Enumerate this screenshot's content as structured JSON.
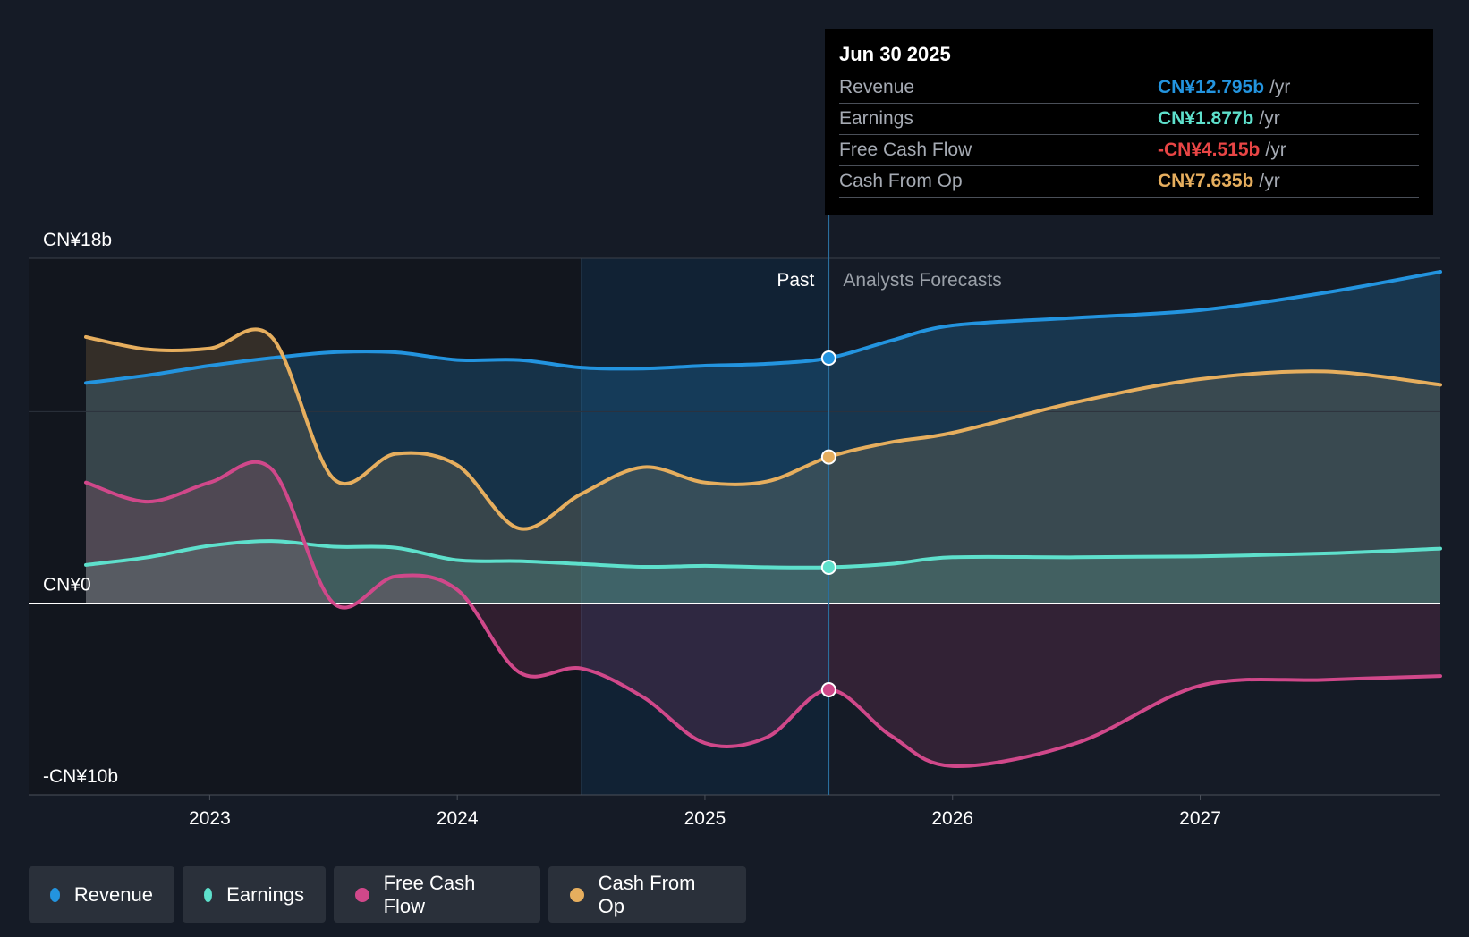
{
  "chart_data": {
    "type": "area",
    "y_unit": "CN¥ billions",
    "ylim": [
      -10,
      18
    ],
    "y_tick_labels": [
      {
        "value": 18,
        "label": "CN¥18b"
      },
      {
        "value": 0,
        "label": "CN¥0"
      },
      {
        "value": -10,
        "label": "-CN¥10b"
      }
    ],
    "x_range": [
      2022.5,
      2027.97
    ],
    "x_ticks": [
      {
        "value": 2023,
        "label": "2023"
      },
      {
        "value": 2024,
        "label": "2024"
      },
      {
        "value": 2025,
        "label": "2025"
      },
      {
        "value": 2026,
        "label": "2026"
      },
      {
        "value": 2027,
        "label": "2027"
      }
    ],
    "past_label": "Past",
    "forecast_label": "Analysts Forecasts",
    "divider_x": 2025.5,
    "highlight_start_x": 2024.5,
    "series": [
      {
        "name": "Revenue",
        "color": "#2394df",
        "x": [
          2022.5,
          2022.75,
          2023.0,
          2023.25,
          2023.5,
          2023.75,
          2024.0,
          2024.25,
          2024.5,
          2024.75,
          2025.0,
          2025.25,
          2025.5,
          2025.75,
          2026.0,
          2026.5,
          2027.0,
          2027.5,
          2027.97
        ],
        "y": [
          11.5,
          11.9,
          12.4,
          12.8,
          13.1,
          13.1,
          12.7,
          12.7,
          12.3,
          12.25,
          12.4,
          12.5,
          12.795,
          13.7,
          14.5,
          14.9,
          15.3,
          16.2,
          17.3
        ]
      },
      {
        "name": "Earnings",
        "color": "#5ee0cc",
        "x": [
          2022.5,
          2022.75,
          2023.0,
          2023.25,
          2023.5,
          2023.75,
          2024.0,
          2024.25,
          2024.5,
          2024.75,
          2025.0,
          2025.25,
          2025.5,
          2025.75,
          2026.0,
          2026.5,
          2027.0,
          2027.5,
          2027.97
        ],
        "y": [
          2.0,
          2.4,
          3.0,
          3.25,
          2.95,
          2.9,
          2.25,
          2.2,
          2.05,
          1.9,
          1.95,
          1.88,
          1.877,
          2.05,
          2.4,
          2.4,
          2.45,
          2.6,
          2.85
        ]
      },
      {
        "name": "Free Cash Flow",
        "color": "#d0488a",
        "x": [
          2022.5,
          2022.75,
          2023.0,
          2023.25,
          2023.5,
          2023.75,
          2024.0,
          2024.25,
          2024.5,
          2024.75,
          2025.0,
          2025.25,
          2025.5,
          2025.75,
          2026.0,
          2026.5,
          2027.0,
          2027.5,
          2027.97
        ],
        "y": [
          6.3,
          5.3,
          6.3,
          7.0,
          0.0,
          1.4,
          0.7,
          -3.6,
          -3.4,
          -4.9,
          -7.3,
          -7.0,
          -4.515,
          -6.9,
          -8.5,
          -7.3,
          -4.3,
          -4.0,
          -3.8
        ]
      },
      {
        "name": "Cash From Op",
        "color": "#e6ae5e",
        "x": [
          2022.5,
          2022.75,
          2023.0,
          2023.25,
          2023.5,
          2023.75,
          2024.0,
          2024.25,
          2024.5,
          2024.75,
          2025.0,
          2025.25,
          2025.5,
          2025.75,
          2026.0,
          2026.5,
          2027.0,
          2027.5,
          2027.97
        ],
        "y": [
          13.9,
          13.25,
          13.3,
          13.9,
          6.5,
          7.8,
          7.2,
          3.9,
          5.7,
          7.1,
          6.3,
          6.35,
          7.635,
          8.4,
          8.9,
          10.5,
          11.7,
          12.1,
          11.4
        ]
      }
    ],
    "tooltip": {
      "date": "Jun 30 2025",
      "rows": [
        {
          "label": "Revenue",
          "value": "CN¥12.795b",
          "unit": "/yr",
          "color": "#2394df"
        },
        {
          "label": "Earnings",
          "value": "CN¥1.877b",
          "unit": "/yr",
          "color": "#5ee0cc"
        },
        {
          "label": "Free Cash Flow",
          "value": "-CN¥4.515b",
          "unit": "/yr",
          "color": "#e84545"
        },
        {
          "label": "Cash From Op",
          "value": "CN¥7.635b",
          "unit": "/yr",
          "color": "#e6ae5e"
        }
      ]
    },
    "legend": [
      {
        "label": "Revenue",
        "color": "#2394df"
      },
      {
        "label": "Earnings",
        "color": "#5ee0cc"
      },
      {
        "label": "Free Cash Flow",
        "color": "#d0488a"
      },
      {
        "label": "Cash From Op",
        "color": "#e6ae5e"
      }
    ]
  }
}
